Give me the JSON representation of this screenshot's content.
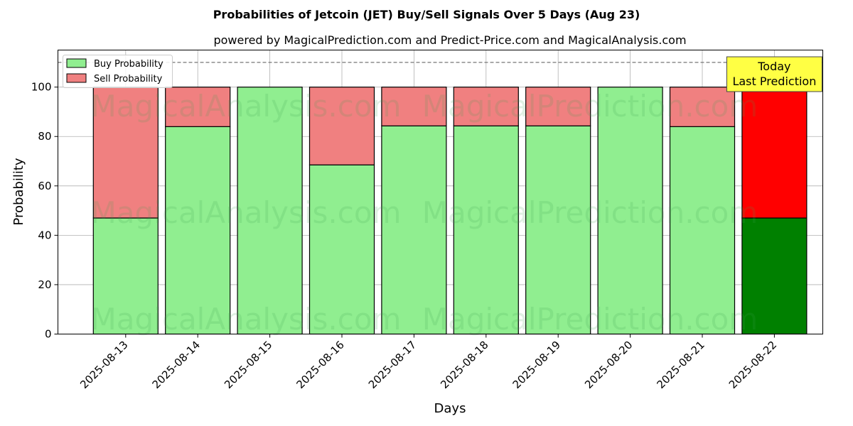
{
  "chart_data": {
    "type": "bar",
    "stacked": true,
    "title": "Probabilities of Jetcoin (JET) Buy/Sell Signals Over 5 Days (Aug 23)",
    "subtitle": "powered by MagicalPrediction.com and Predict-Price.com and MagicalAnalysis.com",
    "xlabel": "Days",
    "ylabel": "Probability",
    "ylim": [
      0,
      115
    ],
    "yticks": [
      0,
      20,
      40,
      60,
      80,
      100
    ],
    "grid": true,
    "legend_position": "top-left",
    "reference_line": 110,
    "categories": [
      "2025-08-13",
      "2025-08-14",
      "2025-08-15",
      "2025-08-16",
      "2025-08-17",
      "2025-08-18",
      "2025-08-19",
      "2025-08-20",
      "2025-08-21",
      "2025-08-22"
    ],
    "series": [
      {
        "name": "Buy Probability",
        "color": "#90ee90",
        "highlight_color": "#008000",
        "values": [
          47,
          84,
          100,
          68.5,
          84.3,
          84.3,
          84.3,
          100,
          84,
          47
        ]
      },
      {
        "name": "Sell Probability",
        "color": "#f08080",
        "highlight_color": "#ff0000",
        "values": [
          53,
          16,
          0,
          31.5,
          15.7,
          15.7,
          15.7,
          0,
          16,
          53
        ]
      }
    ],
    "annotation": {
      "lines": [
        "Today",
        "Last Prediction"
      ],
      "target_index": 9,
      "background": "#ffff44"
    },
    "watermarks": [
      "MagicalAnalysis.com",
      "MagicalPrediction.com",
      "MagicalAnalysis.com",
      "MagicalPrediction.com",
      "MagicalAnalysis.com",
      "MagicalPrediction.com"
    ]
  }
}
